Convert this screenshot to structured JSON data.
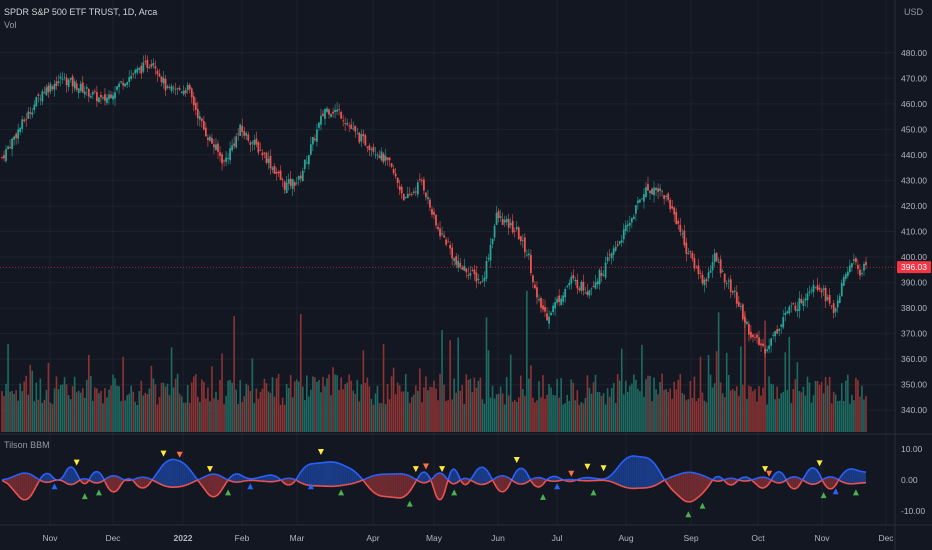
{
  "header": {
    "symbol_line": "SPDR S&P 500 ETF TRUST, 1D, Arca",
    "volume_label": "Vol",
    "indicator_label": "Tilson BBM",
    "currency": "USD"
  },
  "colors": {
    "background": "#131722",
    "grid": "#1e222d",
    "text": "#b2b5be",
    "up": "#26a69a",
    "down": "#ef5350",
    "vol_up": "#1e6b62",
    "vol_down": "#8c3434",
    "price_line": "#f23645",
    "blue": "#2962ff",
    "blue_fill": "#1c3f91",
    "red_fill": "#7a2e33",
    "yellow": "#ffeb3b",
    "green": "#4caf50",
    "orange": "#ff7043"
  },
  "chart_data": {
    "type": "candlestick",
    "title": "SPDR S&P 500 ETF TRUST, 1D, Arca",
    "price_axis": {
      "ticks": [
        "480.00",
        "470.00",
        "460.00",
        "450.00",
        "440.00",
        "430.00",
        "420.00",
        "410.00",
        "400.00",
        "390.00",
        "380.00",
        "370.00",
        "360.00",
        "350.00",
        "340.00"
      ],
      "range": [
        335,
        485
      ]
    },
    "last_price": "396.03",
    "time_axis": [
      "Nov",
      "Dec",
      "2022",
      "Feb",
      "Mar",
      "Apr",
      "May",
      "Jun",
      "Jul",
      "Aug",
      "Sep",
      "Oct",
      "Nov",
      "Dec"
    ],
    "price_anchors": [
      [
        0,
        439
      ],
      [
        6,
        447
      ],
      [
        20,
        465
      ],
      [
        30,
        470
      ],
      [
        42,
        465
      ],
      [
        50,
        461
      ],
      [
        60,
        469
      ],
      [
        75,
        477
      ],
      [
        82,
        465
      ],
      [
        92,
        466
      ],
      [
        100,
        450
      ],
      [
        110,
        437
      ],
      [
        118,
        450
      ],
      [
        130,
        440
      ],
      [
        140,
        428
      ],
      [
        147,
        430
      ],
      [
        160,
        458
      ],
      [
        167,
        457
      ],
      [
        175,
        448
      ],
      [
        185,
        442
      ],
      [
        192,
        436
      ],
      [
        200,
        422
      ],
      [
        208,
        430
      ],
      [
        215,
        412
      ],
      [
        221,
        405
      ],
      [
        225,
        397
      ],
      [
        230,
        395
      ],
      [
        238,
        390
      ],
      [
        245,
        416
      ],
      [
        255,
        410
      ],
      [
        261,
        400
      ],
      [
        265,
        383
      ],
      [
        270,
        377
      ],
      [
        282,
        391
      ],
      [
        290,
        387
      ],
      [
        298,
        395
      ],
      [
        304,
        404
      ],
      [
        310,
        412
      ],
      [
        318,
        426
      ],
      [
        325,
        427
      ],
      [
        330,
        422
      ],
      [
        335,
        413
      ],
      [
        339,
        403
      ],
      [
        343,
        397
      ],
      [
        348,
        390
      ],
      [
        353,
        400
      ],
      [
        358,
        392
      ],
      [
        363,
        385
      ],
      [
        368,
        375
      ],
      [
        372,
        368
      ],
      [
        378,
        364
      ],
      [
        383,
        370
      ],
      [
        388,
        378
      ],
      [
        395,
        382
      ],
      [
        402,
        390
      ],
      [
        406,
        388
      ],
      [
        412,
        378
      ],
      [
        415,
        386
      ],
      [
        421,
        399
      ],
      [
        425,
        394
      ],
      [
        428,
        397
      ]
    ],
    "indicator_axis": {
      "ticks": [
        "10.00",
        "0.00",
        "-10.00"
      ],
      "range": [
        -13,
        13
      ]
    },
    "bbm_anchors": [
      [
        0,
        1
      ],
      [
        12,
        -8
      ],
      [
        22,
        4
      ],
      [
        28,
        -2
      ],
      [
        35,
        7
      ],
      [
        40,
        -4
      ],
      [
        47,
        5
      ],
      [
        55,
        -6
      ],
      [
        62,
        2
      ],
      [
        70,
        -4
      ],
      [
        82,
        7
      ],
      [
        90,
        6
      ],
      [
        105,
        -7
      ],
      [
        115,
        3
      ],
      [
        122,
        0
      ],
      [
        135,
        2
      ],
      [
        143,
        -3
      ],
      [
        150,
        5
      ],
      [
        165,
        6
      ],
      [
        175,
        3
      ],
      [
        185,
        -5
      ],
      [
        200,
        -6
      ],
      [
        210,
        5
      ],
      [
        218,
        -11
      ],
      [
        223,
        9
      ],
      [
        228,
        -4
      ],
      [
        238,
        6
      ],
      [
        248,
        -6
      ],
      [
        257,
        6
      ],
      [
        265,
        -4
      ],
      [
        272,
        2
      ],
      [
        281,
        -1
      ],
      [
        288,
        1
      ],
      [
        300,
        0
      ],
      [
        310,
        8
      ],
      [
        322,
        7
      ],
      [
        330,
        -2
      ],
      [
        340,
        -8
      ],
      [
        348,
        -4
      ],
      [
        355,
        3
      ],
      [
        360,
        -3
      ],
      [
        368,
        2
      ],
      [
        378,
        -4
      ],
      [
        385,
        5
      ],
      [
        392,
        -5
      ],
      [
        402,
        6
      ],
      [
        410,
        -5
      ],
      [
        418,
        4
      ],
      [
        425,
        3
      ],
      [
        428,
        2
      ]
    ],
    "yellow_markers": [
      37,
      80,
      103,
      158,
      205,
      218,
      255,
      290,
      298,
      378,
      405
    ],
    "green_markers": [
      41,
      48,
      112,
      168,
      202,
      224,
      268,
      293,
      340,
      347,
      407,
      423
    ],
    "blue_markers": [
      26,
      123,
      153,
      275,
      413
    ],
    "orange_markers": [
      88,
      210,
      282,
      380
    ]
  }
}
